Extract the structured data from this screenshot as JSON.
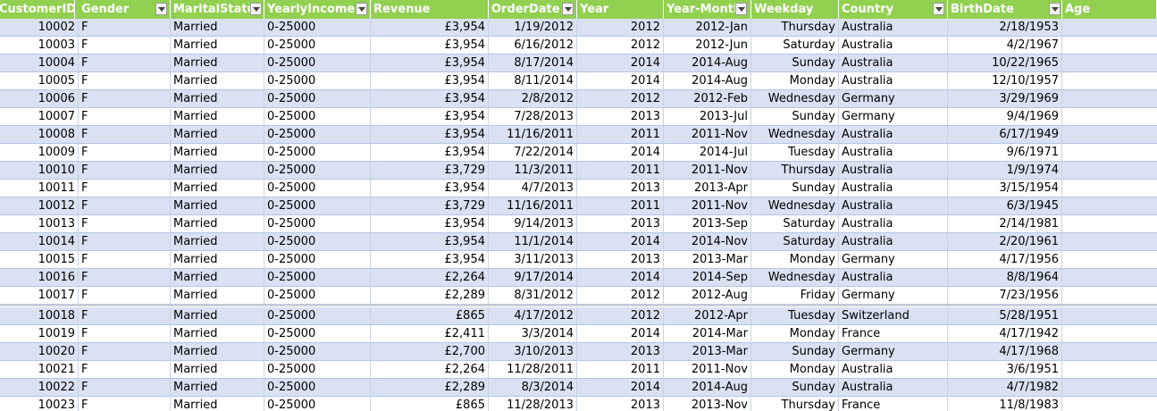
{
  "columns": [
    {
      "label": "CustomerID",
      "align": "right"
    },
    {
      "label": "Gender",
      "align": "left"
    },
    {
      "label": "MaritalStatus",
      "align": "left"
    },
    {
      "label": "YearlyIncome",
      "align": "left"
    },
    {
      "label": "Revenue",
      "align": "right"
    },
    {
      "label": "OrderDate",
      "align": "right"
    },
    {
      "label": "Year",
      "align": "right"
    },
    {
      "label": "Year-Month",
      "align": "right"
    },
    {
      "label": "Weekday",
      "align": "right"
    },
    {
      "label": "Country",
      "align": "left"
    },
    {
      "label": "BirthDate",
      "align": "right"
    },
    {
      "label": "Age",
      "align": "right"
    }
  ],
  "rows": [
    [
      "10002",
      "F",
      "Married",
      "0-25000",
      "£3,954",
      "1/19/2012",
      "2012",
      "2012-Jan",
      "Thursday",
      "Australia",
      "2/18/1953",
      ""
    ],
    [
      "10003",
      "F",
      "Married",
      "0-25000",
      "£3,954",
      "6/16/2012",
      "2012",
      "2012-Jun",
      "Saturday",
      "Australia",
      "4/2/1967",
      ""
    ],
    [
      "10004",
      "F",
      "Married",
      "0-25000",
      "£3,954",
      "8/17/2014",
      "2014",
      "2014-Aug",
      "Sunday",
      "Australia",
      "10/22/1965",
      ""
    ],
    [
      "10005",
      "F",
      "Married",
      "0-25000",
      "£3,954",
      "8/11/2014",
      "2014",
      "2014-Aug",
      "Monday",
      "Australia",
      "12/10/1957",
      ""
    ],
    [
      "10006",
      "F",
      "Married",
      "0-25000",
      "£3,954",
      "2/8/2012",
      "2012",
      "2012-Feb",
      "Wednesday",
      "Germany",
      "3/29/1969",
      ""
    ],
    [
      "10007",
      "F",
      "Married",
      "0-25000",
      "£3,954",
      "7/28/2013",
      "2013",
      "2013-Jul",
      "Sunday",
      "Germany",
      "9/4/1969",
      ""
    ],
    [
      "10008",
      "F",
      "Married",
      "0-25000",
      "£3,954",
      "11/16/2011",
      "2011",
      "2011-Nov",
      "Wednesday",
      "Australia",
      "6/17/1949",
      ""
    ],
    [
      "10009",
      "F",
      "Married",
      "0-25000",
      "£3,954",
      "7/22/2014",
      "2014",
      "2014-Jul",
      "Tuesday",
      "Australia",
      "9/6/1971",
      ""
    ],
    [
      "10010",
      "F",
      "Married",
      "0-25000",
      "£3,729",
      "11/3/2011",
      "2011",
      "2011-Nov",
      "Thursday",
      "Australia",
      "1/9/1974",
      ""
    ],
    [
      "10011",
      "F",
      "Married",
      "0-25000",
      "£3,954",
      "4/7/2013",
      "2013",
      "2013-Apr",
      "Sunday",
      "Australia",
      "3/15/1954",
      ""
    ],
    [
      "10012",
      "F",
      "Married",
      "0-25000",
      "£3,729",
      "11/16/2011",
      "2011",
      "2011-Nov",
      "Wednesday",
      "Australia",
      "6/3/1945",
      ""
    ],
    [
      "10013",
      "F",
      "Married",
      "0-25000",
      "£3,954",
      "9/14/2013",
      "2013",
      "2013-Sep",
      "Saturday",
      "Australia",
      "2/14/1981",
      ""
    ],
    [
      "10014",
      "F",
      "Married",
      "0-25000",
      "£3,954",
      "11/1/2014",
      "2014",
      "2014-Nov",
      "Saturday",
      "Australia",
      "2/20/1961",
      ""
    ],
    [
      "10015",
      "F",
      "Married",
      "0-25000",
      "£3,954",
      "3/11/2013",
      "2013",
      "2013-Mar",
      "Monday",
      "Germany",
      "4/17/1956",
      ""
    ],
    [
      "10016",
      "F",
      "Married",
      "0-25000",
      "£2,264",
      "9/17/2014",
      "2014",
      "2014-Sep",
      "Wednesday",
      "Australia",
      "8/8/1964",
      ""
    ],
    [
      "10017",
      "F",
      "Married",
      "0-25000",
      "£2,289",
      "8/31/2012",
      "2012",
      "2012-Aug",
      "Friday",
      "Germany",
      "7/23/1956",
      ""
    ],
    [
      "10018",
      "F",
      "Married",
      "0-25000",
      "£865",
      "4/17/2012",
      "2012",
      "2012-Apr",
      "Tuesday",
      "Switzerland",
      "5/28/1951",
      ""
    ],
    [
      "10019",
      "F",
      "Married",
      "0-25000",
      "£2,411",
      "3/3/2014",
      "2014",
      "2014-Mar",
      "Monday",
      "France",
      "4/17/1942",
      ""
    ],
    [
      "10020",
      "F",
      "Married",
      "0-25000",
      "£2,700",
      "3/10/2013",
      "2013",
      "2013-Mar",
      "Sunday",
      "Germany",
      "4/17/1968",
      ""
    ],
    [
      "10021",
      "F",
      "Married",
      "0-25000",
      "£2,264",
      "11/28/2011",
      "2011",
      "2011-Nov",
      "Monday",
      "Australia",
      "3/6/1951",
      ""
    ],
    [
      "10022",
      "F",
      "Married",
      "0-25000",
      "£2,289",
      "8/3/2014",
      "2014",
      "2014-Aug",
      "Sunday",
      "Australia",
      "4/7/1982",
      ""
    ],
    [
      "10023",
      "F",
      "Married",
      "0-25000",
      "£865",
      "11/28/2013",
      "2013",
      "2013-Nov",
      "Thursday",
      "France",
      "11/8/1983",
      ""
    ]
  ]
}
